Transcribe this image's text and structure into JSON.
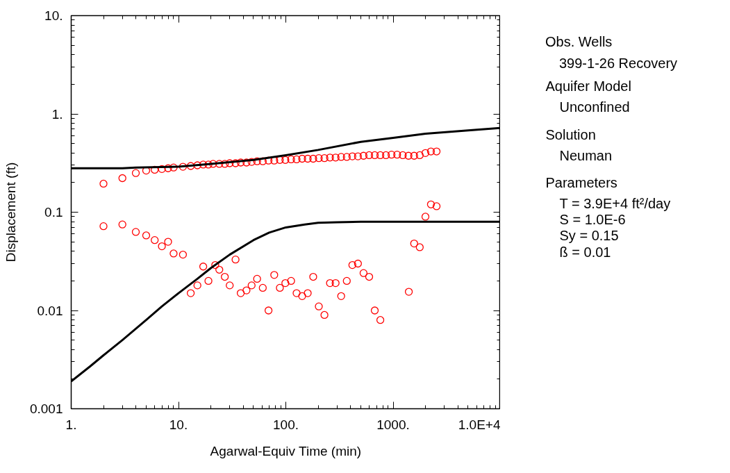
{
  "chart_data": {
    "type": "scatter",
    "xlabel": "Agarwal-Equiv Time (min)",
    "ylabel": "Displacement (ft)",
    "legend_title": "Obs. Wells",
    "log": "xy",
    "grid": false,
    "legend": "right",
    "xlim": [
      1,
      10000
    ],
    "ylim": [
      0.001,
      10
    ],
    "xticks": [
      {
        "value": 1,
        "label": "1."
      },
      {
        "value": 10,
        "label": "10."
      },
      {
        "value": 100,
        "label": "100."
      },
      {
        "value": 1000,
        "label": "1000."
      },
      {
        "value": 10000,
        "label": "1.0E+4"
      }
    ],
    "yticks": [
      0.001,
      0.01,
      0.1,
      {
        "value": 1,
        "label": "1."
      },
      {
        "value": 10,
        "label": "10."
      }
    ],
    "series": [
      {
        "name": "399-1-26 Recovery",
        "marker": "circle",
        "color": "#ff0000",
        "x": [
          2,
          3,
          4,
          5,
          6,
          7,
          8,
          9,
          11,
          13,
          15,
          17,
          19,
          21,
          24,
          27,
          30,
          34,
          38,
          43,
          48,
          54,
          61,
          69,
          78,
          88,
          99,
          112,
          126,
          142,
          160,
          180,
          203,
          229,
          258,
          291,
          328,
          370,
          417,
          470,
          530,
          598,
          674,
          760,
          857,
          966,
          1090,
          1230,
          1390,
          1570,
          1770,
          2000,
          2250,
          2540,
          2,
          3,
          4,
          5,
          6,
          7,
          8,
          9,
          11,
          13,
          15,
          17,
          19,
          22,
          24,
          27,
          30,
          34,
          38,
          43,
          48,
          54,
          61,
          69,
          78,
          88,
          99,
          112,
          126,
          142,
          160,
          180,
          203,
          229,
          258,
          291,
          328,
          370,
          417,
          470,
          530,
          598,
          674,
          760,
          1400,
          1570,
          1770,
          2000,
          2250,
          2540
        ],
        "values": [
          0.195,
          0.222,
          0.25,
          0.265,
          0.27,
          0.275,
          0.28,
          0.285,
          0.29,
          0.295,
          0.3,
          0.305,
          0.305,
          0.31,
          0.31,
          0.31,
          0.315,
          0.315,
          0.32,
          0.32,
          0.325,
          0.33,
          0.33,
          0.335,
          0.335,
          0.34,
          0.34,
          0.345,
          0.345,
          0.35,
          0.35,
          0.35,
          0.355,
          0.355,
          0.36,
          0.36,
          0.365,
          0.365,
          0.37,
          0.37,
          0.375,
          0.38,
          0.38,
          0.38,
          0.38,
          0.385,
          0.385,
          0.38,
          0.375,
          0.375,
          0.38,
          0.4,
          0.415,
          0.415,
          0.072,
          0.075,
          0.063,
          0.058,
          0.052,
          0.045,
          0.05,
          0.038,
          0.037,
          0.015,
          0.018,
          0.028,
          0.02,
          0.029,
          0.026,
          0.022,
          0.018,
          0.033,
          0.015,
          0.016,
          0.018,
          0.021,
          0.017,
          0.01,
          0.023,
          0.017,
          0.019,
          0.02,
          0.015,
          0.014,
          0.015,
          0.022,
          0.011,
          0.009,
          0.019,
          0.019,
          0.014,
          0.02,
          0.029,
          0.03,
          0.024,
          0.022,
          0.01,
          0.008,
          0.0155,
          0.048,
          0.044,
          0.09,
          0.12,
          0.115
        ]
      },
      {
        "type": "line",
        "color": "#000000",
        "x": [
          1,
          3,
          4,
          10,
          20,
          50,
          100,
          200,
          500,
          1000,
          2000,
          5000,
          10000
        ],
        "values": [
          0.28,
          0.28,
          0.285,
          0.29,
          0.31,
          0.34,
          0.38,
          0.43,
          0.52,
          0.57,
          0.63,
          0.68,
          0.72
        ]
      },
      {
        "type": "line",
        "color": "#000000",
        "x": [
          1,
          1.5,
          2,
          3,
          5,
          7,
          10,
          15,
          20,
          30,
          50,
          70,
          100,
          150,
          200,
          300,
          500,
          1000,
          10000
        ],
        "values": [
          0.0019,
          0.0027,
          0.0035,
          0.005,
          0.008,
          0.011,
          0.015,
          0.021,
          0.027,
          0.037,
          0.052,
          0.062,
          0.07,
          0.075,
          0.078,
          0.079,
          0.08,
          0.08,
          0.08
        ]
      }
    ],
    "annotations": [
      "Aquifer Model",
      "Unconfined",
      "Solution",
      "Neuman",
      "Parameters",
      "T   = 3.9E+4 ft²/day",
      "S   = 1.0E-6",
      "Sy = 0.15",
      "ß   = 0.01"
    ]
  }
}
